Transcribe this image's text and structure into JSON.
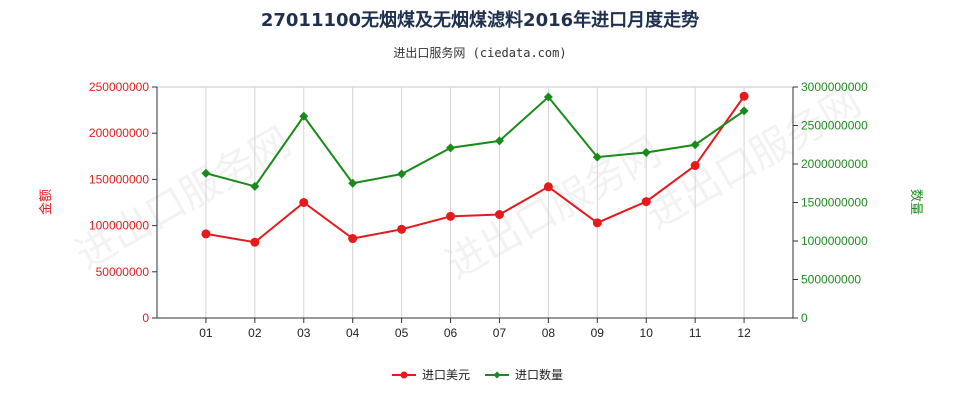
{
  "chart_data": {
    "type": "line",
    "title": "27011100无烟煤及无烟煤滤料2016年进口月度走势",
    "subtitle": "进出口服务网 (ciedata.com)",
    "watermark": "进出口服务网",
    "categories": [
      "01",
      "02",
      "03",
      "04",
      "05",
      "06",
      "07",
      "08",
      "09",
      "10",
      "11",
      "12"
    ],
    "y_left": {
      "label": "金额",
      "range": [
        0,
        250000000
      ],
      "ticks": [
        "0",
        "50000000",
        "100000000",
        "150000000",
        "200000000",
        "250000000"
      ],
      "color": "#e02020"
    },
    "y_right": {
      "label": "数量",
      "range": [
        0,
        3000000000
      ],
      "ticks": [
        "0",
        "500000000",
        "1000000000",
        "1500000000",
        "2000000000",
        "2500000000",
        "3000000000"
      ],
      "color": "#228b22"
    },
    "grid": "vertical",
    "legend_position": "bottom",
    "series": [
      {
        "name": "进口美元",
        "axis": "left",
        "color": "#e41a1c",
        "marker": "circle",
        "values": [
          91000000,
          82000000,
          125000000,
          86000000,
          96000000,
          110000000,
          112000000,
          142000000,
          103000000,
          126000000,
          165000000,
          240000000
        ]
      },
      {
        "name": "进口数量",
        "axis": "right",
        "color": "#1a8a1a",
        "marker": "diamond",
        "values": [
          1880000000,
          1710000000,
          2620000000,
          1750000000,
          1870000000,
          2210000000,
          2300000000,
          2870000000,
          2090000000,
          2150000000,
          2250000000,
          2690000000
        ]
      }
    ]
  }
}
